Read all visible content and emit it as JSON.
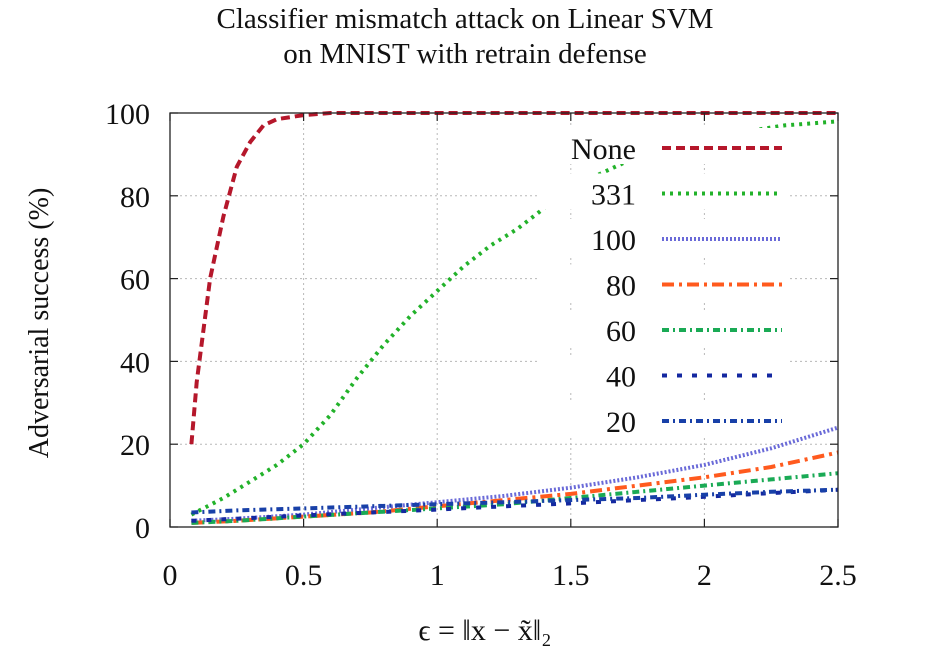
{
  "chart_data": {
    "type": "line",
    "title_lines": [
      "Classifier mismatch attack on Linear SVM",
      "on MNIST with retrain defense"
    ],
    "xlabel": "ϵ = ‖x − x̃‖₂",
    "ylabel": "Adversarial success (%)",
    "xlim": [
      0,
      2.5
    ],
    "ylim": [
      0,
      100
    ],
    "xticks": [
      "0",
      "0.5",
      "1",
      "1.5",
      "2",
      "2.5"
    ],
    "xtick_values": [
      0,
      0.5,
      1,
      1.5,
      2,
      2.5
    ],
    "yticks": [
      "0",
      "20",
      "40",
      "60",
      "80",
      "100"
    ],
    "ytick_values": [
      0,
      20,
      40,
      60,
      80,
      100
    ],
    "grid": true,
    "legend_position": "top-right",
    "series": [
      {
        "name": "None",
        "color": "#b5172b",
        "dash": "dashed",
        "x": [
          0.08,
          0.1,
          0.15,
          0.2,
          0.25,
          0.3,
          0.35,
          0.4,
          0.5,
          0.6,
          0.8,
          1.0,
          1.5,
          2.0,
          2.5
        ],
        "y": [
          20,
          35,
          60,
          75,
          87,
          93,
          97,
          98.5,
          99.5,
          100,
          100,
          100,
          100,
          100,
          100
        ]
      },
      {
        "name": "331",
        "color": "#22b22a",
        "dash": "dotted",
        "x": [
          0.08,
          0.2,
          0.3,
          0.4,
          0.5,
          0.6,
          0.7,
          0.8,
          0.9,
          1.0,
          1.1,
          1.2,
          1.3,
          1.4,
          1.5,
          1.6,
          1.7,
          1.8,
          1.9,
          2.0,
          2.1,
          2.2,
          2.3,
          2.4,
          2.5
        ],
        "y": [
          3,
          7,
          11,
          15,
          20,
          27,
          36,
          44,
          51,
          57,
          63,
          68,
          72,
          77,
          81,
          85,
          88,
          90,
          92,
          94,
          95,
          96,
          97,
          97.5,
          98
        ]
      },
      {
        "name": "100",
        "color": "#6a6ad8",
        "dash": "densedot",
        "x": [
          0.08,
          0.25,
          0.5,
          0.75,
          1.0,
          1.25,
          1.5,
          1.75,
          2.0,
          2.25,
          2.5
        ],
        "y": [
          1.5,
          2,
          3,
          4.5,
          6,
          7.5,
          9.5,
          12,
          15,
          19,
          24
        ]
      },
      {
        "name": "80",
        "color": "#ff5a1e",
        "dash": "longdashdot",
        "x": [
          0.08,
          0.25,
          0.5,
          0.75,
          1.0,
          1.25,
          1.5,
          1.75,
          2.0,
          2.25,
          2.5
        ],
        "y": [
          1,
          1.5,
          2.5,
          3.5,
          5,
          6.5,
          8,
          10,
          12,
          14.5,
          18
        ]
      },
      {
        "name": "60",
        "color": "#1aaa55",
        "dash": "dashdot",
        "x": [
          0.08,
          0.25,
          0.5,
          0.75,
          1.0,
          1.25,
          1.5,
          1.75,
          2.0,
          2.25,
          2.5
        ],
        "y": [
          1,
          1.5,
          2.5,
          3.5,
          4.5,
          5.5,
          7,
          8.5,
          10,
          11.5,
          13
        ]
      },
      {
        "name": "40",
        "color": "#1428a0",
        "dash": "sparsedot",
        "x": [
          0.08,
          0.25,
          0.5,
          0.75,
          1.0,
          1.25,
          1.5,
          1.75,
          2.0,
          2.25,
          2.5
        ],
        "y": [
          1.5,
          2,
          2.8,
          3.5,
          4.2,
          5,
          5.7,
          6.5,
          7.3,
          8.2,
          9
        ]
      },
      {
        "name": "20",
        "color": "#1840a8",
        "dash": "dashdot",
        "x": [
          0.08,
          0.25,
          0.5,
          0.75,
          1.0,
          1.25,
          1.5,
          1.75,
          2.0,
          2.25,
          2.5
        ],
        "y": [
          3.5,
          4,
          4.5,
          5,
          5.5,
          6,
          6.5,
          7,
          7.8,
          8.5,
          9
        ]
      }
    ]
  }
}
